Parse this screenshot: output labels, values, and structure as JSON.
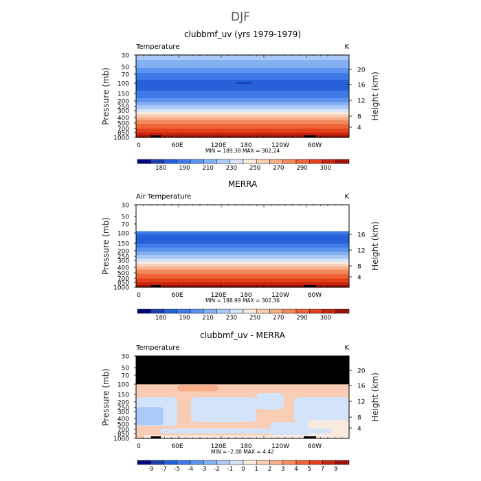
{
  "figure_title": "DJF",
  "chart_data": [
    {
      "type": "heatmap",
      "title": "clubbmf_uv (yrs 1979-1979)",
      "field_label": "Temperature",
      "units": "K",
      "ylabel": "Pressure (mb)",
      "ylabel_right": "Height (km)",
      "y_ticks": [
        "30",
        "50",
        "70",
        "100",
        "150",
        "200",
        "250",
        "300",
        "400",
        "500",
        "700",
        "850",
        "1000"
      ],
      "y_ticks_right": [
        "20",
        "16",
        "12",
        "8",
        "4"
      ],
      "x_ticks": [
        "0",
        "60E",
        "120E",
        "180",
        "120W",
        "60W"
      ],
      "stats": "MIN = 189.38   MAX = 302.24",
      "colorbar_labels": [
        "180",
        "190",
        "210",
        "230",
        "250",
        "270",
        "290",
        "300"
      ],
      "colors": [
        "#05057a",
        "#1a3fb0",
        "#2560d8",
        "#3d7ae8",
        "#5c93ef",
        "#84aff3",
        "#abc9f7",
        "#d3e3fa",
        "#fae9de",
        "#f8cdb3",
        "#f6ad88",
        "#f38a5d",
        "#ef6336",
        "#e3401b",
        "#c82510",
        "#9a1208"
      ]
    },
    {
      "type": "heatmap",
      "title": "MERRA",
      "field_label": "Air Temperature",
      "units": "K",
      "ylabel": "Pressure (mb)",
      "ylabel_right": "Height (km)",
      "y_ticks": [
        "30",
        "50",
        "70",
        "100",
        "150",
        "200",
        "250",
        "300",
        "400",
        "500",
        "700",
        "850",
        "1000"
      ],
      "y_ticks_right": [
        "16",
        "12",
        "8",
        "4"
      ],
      "x_ticks": [
        "0",
        "60E",
        "120E",
        "180",
        "120W",
        "60W"
      ],
      "stats": "MIN = 188.99   MAX = 302.36",
      "colorbar_labels": [
        "180",
        "190",
        "210",
        "230",
        "250",
        "270",
        "290",
        "300"
      ],
      "colors": [
        "#05057a",
        "#1a3fb0",
        "#2560d8",
        "#3d7ae8",
        "#5c93ef",
        "#84aff3",
        "#abc9f7",
        "#d3e3fa",
        "#fae9de",
        "#f8cdb3",
        "#f6ad88",
        "#f38a5d",
        "#ef6336",
        "#e3401b",
        "#c82510",
        "#9a1208"
      ]
    },
    {
      "type": "heatmap",
      "title": "clubbmf_uv - MERRA",
      "field_label": "Temperature",
      "units": "K",
      "ylabel": "Pressure (mb)",
      "ylabel_right": "Height (km)",
      "y_ticks": [
        "30",
        "50",
        "70",
        "100",
        "150",
        "200",
        "250",
        "300",
        "400",
        "500",
        "700",
        "850",
        "1000"
      ],
      "y_ticks_right": [
        "20",
        "16",
        "12",
        "8",
        "4"
      ],
      "x_ticks": [
        "0",
        "60E",
        "120E",
        "180",
        "120W",
        "60W"
      ],
      "stats": "MIN = -2.00   MAX = 4.42",
      "colorbar_labels": [
        "-9",
        "-7",
        "-5",
        "-4",
        "-3",
        "-2",
        "-1",
        "0",
        "1",
        "2",
        "3",
        "4",
        "5",
        "7",
        "9"
      ],
      "colors": [
        "#05057a",
        "#1a3fb0",
        "#2560d8",
        "#3d7ae8",
        "#5c93ef",
        "#84aff3",
        "#abc9f7",
        "#d3e3fa",
        "#fae9de",
        "#f8cdb3",
        "#f6ad88",
        "#f38a5d",
        "#ef6336",
        "#e3401b",
        "#c82510",
        "#9a1208"
      ]
    }
  ]
}
